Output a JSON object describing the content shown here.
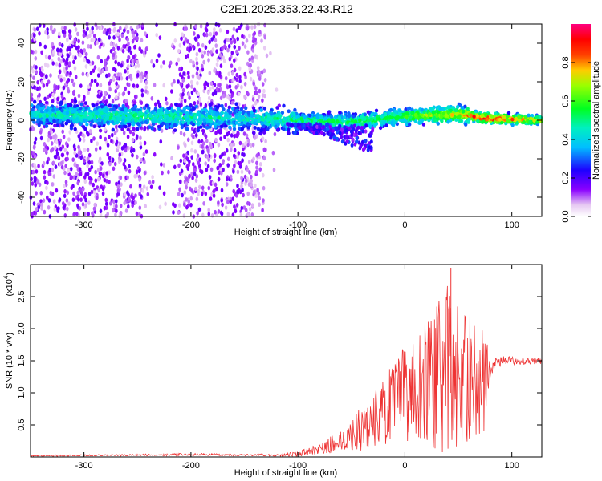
{
  "title": "C2E1.2025.353.22.43.R12",
  "chart_data": [
    {
      "type": "heatmap",
      "name": "spectrogram",
      "xlabel": "Height of straight line (km)",
      "ylabel": "Frequency (Hz)",
      "xlim": [
        -350,
        128
      ],
      "ylim": [
        -50,
        50
      ],
      "xticks": [
        -300,
        -200,
        -100,
        0,
        100
      ],
      "yticks": [
        -40,
        -20,
        0,
        20,
        40
      ],
      "colorbar": {
        "label": "Normalized spectral amplitude",
        "range": [
          0,
          1
        ],
        "ticks": [
          "0.0",
          "0.2",
          "0.4",
          "0.6",
          "0.8"
        ],
        "tick_values": [
          0.0,
          0.2,
          0.4,
          0.6,
          0.8
        ]
      },
      "ridge": {
        "description_points": [
          {
            "x": -350,
            "freq": 3,
            "amp": 0.45
          },
          {
            "x": -250,
            "freq": 2,
            "amp": 0.5
          },
          {
            "x": -150,
            "freq": 1,
            "amp": 0.45
          },
          {
            "x": -100,
            "freq": 0,
            "amp": 0.5
          },
          {
            "x": -50,
            "freq": -1,
            "amp": 0.55
          },
          {
            "x": 0,
            "freq": 2,
            "amp": 0.6
          },
          {
            "x": 50,
            "freq": 3,
            "amp": 0.75
          },
          {
            "x": 75,
            "freq": 1,
            "amp": 0.95
          },
          {
            "x": 128,
            "freq": 0,
            "amp": 0.7
          }
        ],
        "low_tail_to_freq": -15,
        "low_tail_x_range": [
          -110,
          -30
        ]
      }
    },
    {
      "type": "line",
      "name": "snr",
      "xlabel": "Height of straight line (km)",
      "ylabel": "SNR (10 * v/v)",
      "scale_label": "(x10",
      "scale_exp": "4",
      "xlim": [
        -350,
        128
      ],
      "ylim": [
        0,
        3.0
      ],
      "xticks": [
        -300,
        -200,
        -100,
        0,
        100
      ],
      "yticks": [
        0.5,
        1.0,
        1.5,
        2.0,
        2.5
      ],
      "ytick_labels": [
        "0.5",
        "1.0",
        "1.5",
        "2.0",
        "2.5"
      ],
      "color": "#ee3333",
      "envelope": {
        "x": [
          -350,
          -250,
          -200,
          -150,
          -120,
          -100,
          -80,
          -60,
          -40,
          -20,
          0,
          20,
          40,
          60,
          75,
          80,
          90,
          100,
          128
        ],
        "mean": [
          0.02,
          0.03,
          0.04,
          0.03,
          0.03,
          0.05,
          0.12,
          0.25,
          0.45,
          0.7,
          1.0,
          1.2,
          1.3,
          1.25,
          1.2,
          1.4,
          1.5,
          1.5,
          1.5
        ],
        "amp": [
          0.01,
          0.015,
          0.02,
          0.015,
          0.02,
          0.04,
          0.08,
          0.18,
          0.35,
          0.55,
          0.75,
          0.95,
          1.4,
          1.0,
          0.8,
          0.12,
          0.08,
          0.06,
          0.05
        ]
      },
      "peak": {
        "x": 43,
        "y": 2.95
      }
    }
  ]
}
